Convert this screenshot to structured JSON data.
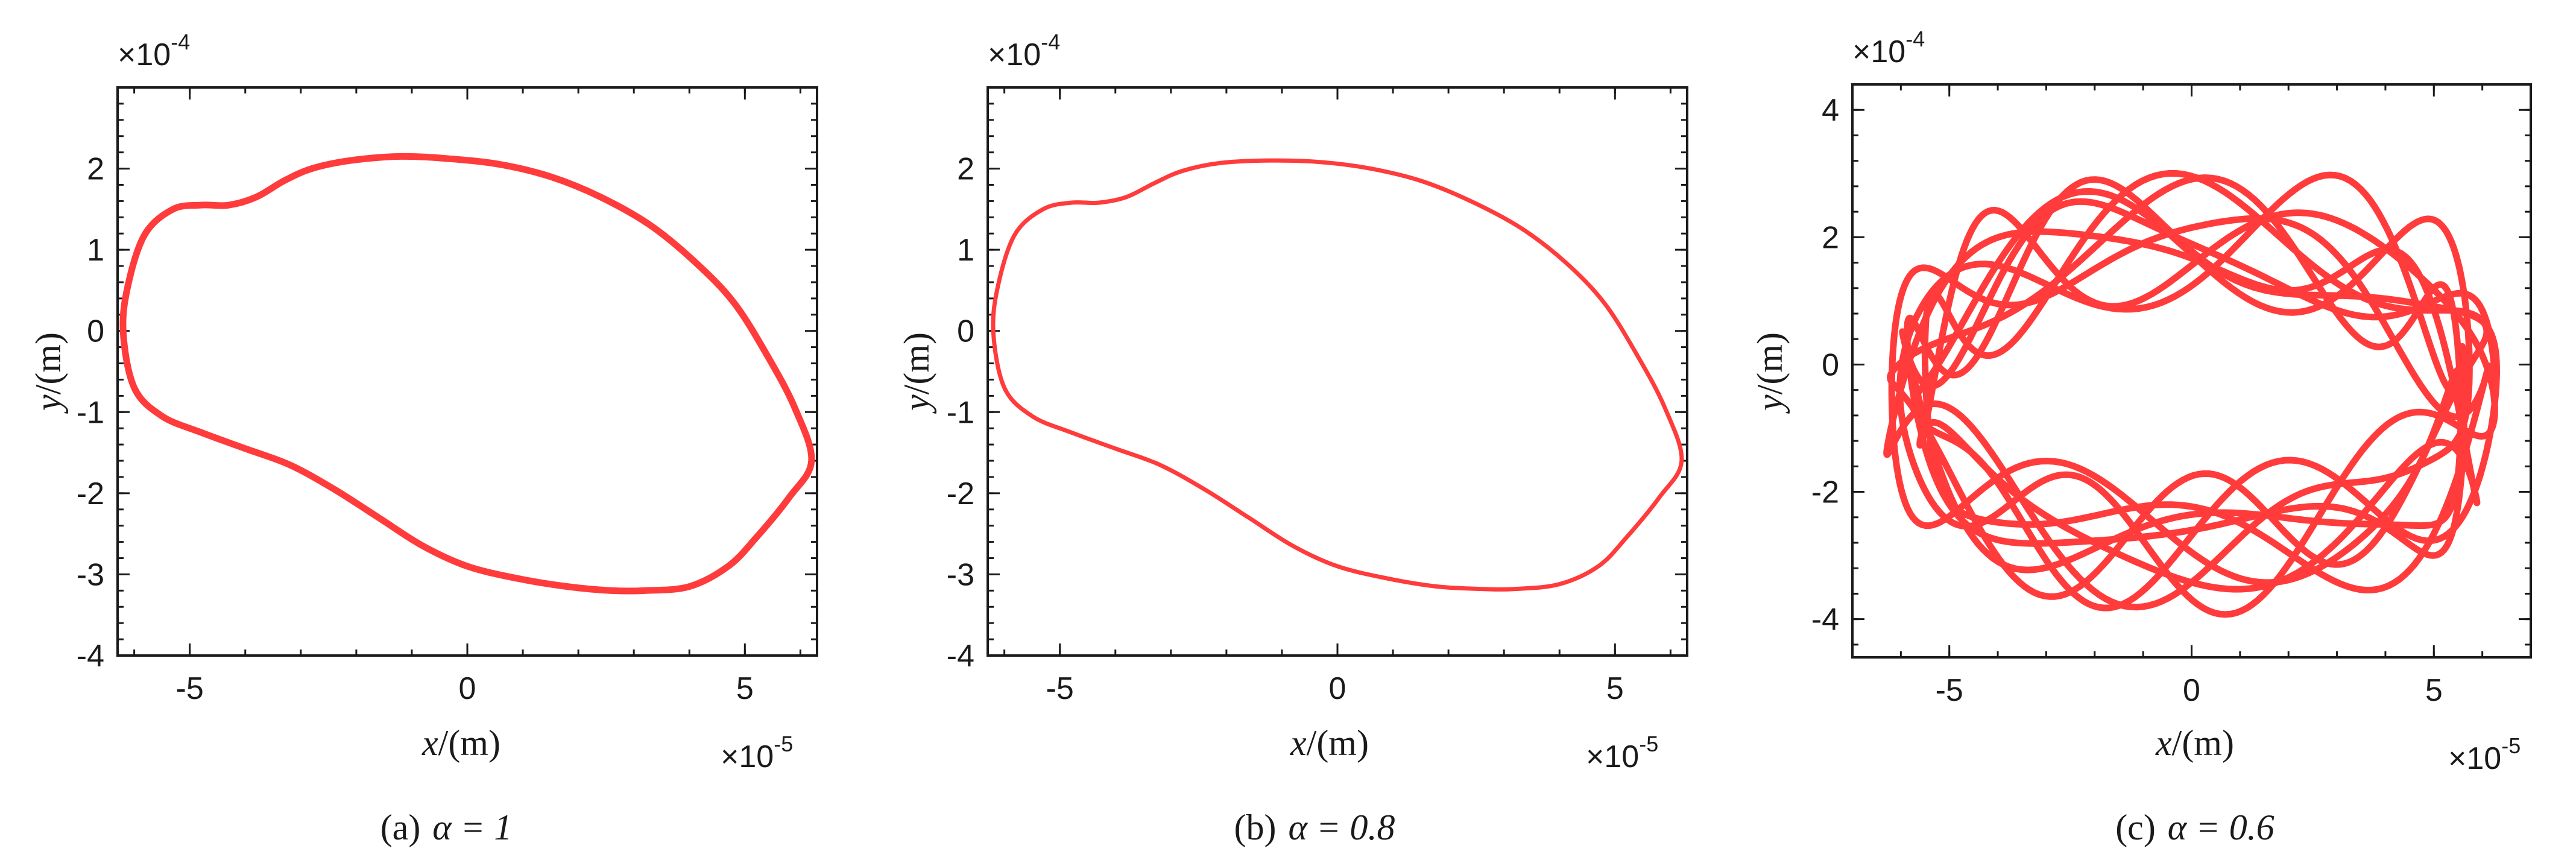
{
  "chart_data": [
    {
      "type": "line",
      "caption": "(a) α = 1",
      "caption_prefix": "(a)",
      "caption_param": "α = 1",
      "xlabel": "x",
      "xlabel_unit": "/(m)",
      "ylabel": "y",
      "ylabel_unit": "/(m)",
      "x_multiplier": "×10",
      "x_multiplier_exp": "-5",
      "y_multiplier": "×10",
      "y_multiplier_exp": "-4",
      "xlim": [
        -6.3,
        6.3
      ],
      "ylim": [
        -4,
        3
      ],
      "xticks": [
        -5,
        0,
        5
      ],
      "xtick_labels": [
        "-5",
        "0",
        "5"
      ],
      "yticks": [
        -4,
        -3,
        -2,
        -1,
        0,
        1,
        2
      ],
      "ytick_labels": [
        "-4",
        "-3",
        "-2",
        "-1",
        "0",
        "1",
        "2"
      ],
      "color": "#ff3b3b",
      "series": [
        {
          "x": [
            -6.2,
            -6.1,
            -5.8,
            -5.3,
            -4.8,
            -4.3,
            -3.8,
            -3.3,
            -2.8,
            -2.1,
            -1.2,
            -0.3,
            0.6,
            1.5,
            2.4,
            3.3,
            4.1,
            4.8,
            5.4,
            5.9,
            6.2,
            5.8,
            5.2,
            4.7,
            4.0,
            3.2,
            2.6,
            1.8,
            0.9,
            0.0,
            -0.8,
            -1.6,
            -2.4,
            -3.2,
            -4.0,
            -4.8,
            -5.5,
            -6.0,
            -6.2
          ],
          "y": [
            0.0,
            0.6,
            1.2,
            1.5,
            1.55,
            1.55,
            1.65,
            1.85,
            2.0,
            2.1,
            2.15,
            2.12,
            2.05,
            1.9,
            1.65,
            1.3,
            0.85,
            0.35,
            -0.3,
            -0.95,
            -1.6,
            -2.05,
            -2.55,
            -2.9,
            -3.15,
            -3.2,
            -3.2,
            -3.15,
            -3.05,
            -2.9,
            -2.65,
            -2.3,
            -1.95,
            -1.65,
            -1.45,
            -1.25,
            -1.05,
            -0.7,
            0.0
          ]
        }
      ]
    },
    {
      "type": "line",
      "caption": "(b) α = 0.8",
      "caption_prefix": "(b)",
      "caption_param": "α = 0.8",
      "xlabel": "x",
      "xlabel_unit": "/(m)",
      "ylabel": "y",
      "ylabel_unit": "/(m)",
      "x_multiplier": "×10",
      "x_multiplier_exp": "-5",
      "y_multiplier": "×10",
      "y_multiplier_exp": "-4",
      "xlim": [
        -6.3,
        6.3
      ],
      "ylim": [
        -4,
        3
      ],
      "xticks": [
        -5,
        0,
        5
      ],
      "xtick_labels": [
        "-5",
        "0",
        "5"
      ],
      "yticks": [
        -4,
        -3,
        -2,
        -1,
        0,
        1,
        2
      ],
      "ytick_labels": [
        "-4",
        "-3",
        "-2",
        "-1",
        "0",
        "1",
        "2"
      ],
      "color": "#ff3b3b",
      "series": [
        {
          "x": [
            -6.2,
            -6.1,
            -5.8,
            -5.3,
            -4.8,
            -4.3,
            -3.8,
            -3.3,
            -2.8,
            -2.1,
            -1.2,
            -0.3,
            0.6,
            1.5,
            2.4,
            3.3,
            4.1,
            4.8,
            5.4,
            5.9,
            6.2,
            5.8,
            5.2,
            4.7,
            4.0,
            3.2,
            2.6,
            1.8,
            0.9,
            0.0,
            -0.8,
            -1.6,
            -2.4,
            -3.2,
            -4.0,
            -4.8,
            -5.5,
            -6.0,
            -6.2
          ],
          "y": [
            0.0,
            0.6,
            1.2,
            1.5,
            1.58,
            1.58,
            1.65,
            1.82,
            1.97,
            2.07,
            2.1,
            2.08,
            2.0,
            1.85,
            1.6,
            1.27,
            0.85,
            0.35,
            -0.3,
            -0.95,
            -1.6,
            -2.05,
            -2.55,
            -2.9,
            -3.12,
            -3.18,
            -3.18,
            -3.15,
            -3.05,
            -2.9,
            -2.65,
            -2.3,
            -1.95,
            -1.65,
            -1.45,
            -1.25,
            -1.05,
            -0.7,
            0.0
          ]
        }
      ]
    },
    {
      "type": "line",
      "caption": "(c) α = 0.6",
      "caption_prefix": "(c)",
      "caption_param": "α = 0.6",
      "xlabel": "x",
      "xlabel_unit": "/(m)",
      "ylabel": "y",
      "ylabel_unit": "/(m)",
      "x_multiplier": "×10",
      "x_multiplier_exp": "-5",
      "y_multiplier": "×10",
      "y_multiplier_exp": "-4",
      "xlim": [
        -7,
        7
      ],
      "ylim": [
        -4.6,
        4.4
      ],
      "xticks": [
        -5,
        0,
        5
      ],
      "xtick_labels": [
        "-5",
        "0",
        "5"
      ],
      "yticks": [
        -4,
        -2,
        0,
        2,
        4
      ],
      "ytick_labels": [
        "-4",
        "-2",
        "0",
        "2",
        "4"
      ],
      "color": "#ff3b3b",
      "series": [
        {
          "type": "quasi-periodic-orbit",
          "x_amplitude": 5.9,
          "y_upper": 2.1,
          "y_lower": -3.0,
          "y_mod": 0.8,
          "x_mod": 0.4,
          "turns": 9
        }
      ]
    }
  ]
}
